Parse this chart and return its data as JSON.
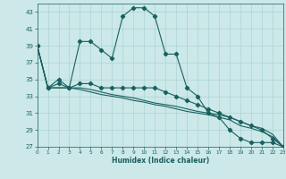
{
  "xlabel": "Humidex (Indice chaleur)",
  "background_color": "#cce8e8",
  "grid_color": "#aad4d4",
  "line_color": "#1a6060",
  "xlim": [
    0,
    23
  ],
  "ylim": [
    27,
    44
  ],
  "yticks": [
    27,
    29,
    31,
    33,
    35,
    37,
    39,
    41,
    43
  ],
  "xticks": [
    0,
    1,
    2,
    3,
    4,
    5,
    6,
    7,
    8,
    9,
    10,
    11,
    12,
    13,
    14,
    15,
    16,
    17,
    18,
    19,
    20,
    21,
    22,
    23
  ],
  "series": [
    {
      "x": [
        0,
        1,
        2,
        3,
        4,
        5,
        6,
        7,
        8,
        9,
        10,
        11,
        12,
        13,
        14,
        15,
        16,
        17,
        18,
        19,
        20,
        21,
        22,
        23
      ],
      "y": [
        39,
        34,
        35,
        34,
        39.5,
        39.5,
        38.5,
        37.5,
        42.5,
        43.5,
        43.5,
        42.5,
        38.0,
        38.0,
        34.0,
        33.0,
        31.0,
        30.5,
        29.0,
        28.0,
        27.5,
        27.5,
        27.5,
        27.0
      ],
      "marker": true
    },
    {
      "x": [
        0,
        1,
        2,
        3,
        4,
        5,
        6,
        7,
        8,
        9,
        10,
        11,
        12,
        13,
        14,
        15,
        16,
        17,
        18,
        19,
        20,
        21,
        22,
        23
      ],
      "y": [
        39,
        34,
        34.5,
        34.0,
        34.5,
        34.5,
        34.0,
        34.0,
        34.0,
        34.0,
        34.0,
        34.0,
        33.5,
        33.0,
        32.5,
        32.0,
        31.5,
        31.0,
        30.5,
        30.0,
        29.5,
        29.0,
        28.0,
        27.0
      ],
      "marker": true
    },
    {
      "x": [
        0,
        1,
        2,
        3,
        4,
        5,
        6,
        7,
        8,
        9,
        10,
        11,
        12,
        13,
        14,
        15,
        16,
        17,
        18,
        19,
        20,
        21,
        22,
        23
      ],
      "y": [
        39,
        34,
        34,
        34,
        33.8,
        33.5,
        33.2,
        33.0,
        32.8,
        32.5,
        32.3,
        32.0,
        31.8,
        31.5,
        31.2,
        31.0,
        30.8,
        30.5,
        30.2,
        29.5,
        29.2,
        28.8,
        28.2,
        27.0
      ],
      "marker": false
    },
    {
      "x": [
        0,
        1,
        2,
        3,
        4,
        5,
        6,
        7,
        8,
        9,
        10,
        11,
        12,
        13,
        14,
        15,
        16,
        17,
        18,
        19,
        20,
        21,
        22,
        23
      ],
      "y": [
        39,
        34,
        34,
        34,
        34.0,
        33.8,
        33.5,
        33.2,
        33.0,
        32.8,
        32.5,
        32.2,
        32.0,
        31.8,
        31.5,
        31.2,
        31.0,
        30.8,
        30.5,
        30.0,
        29.5,
        29.2,
        28.5,
        27.0
      ],
      "marker": false
    }
  ]
}
